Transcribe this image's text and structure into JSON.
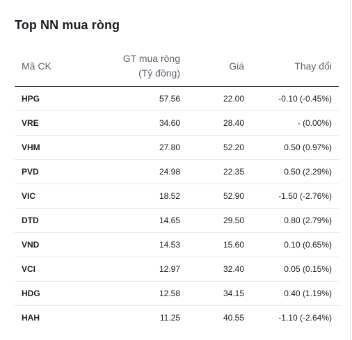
{
  "card": {
    "title": "Top NN mua ròng"
  },
  "table": {
    "headers": {
      "symbol": "Mã CK",
      "value_line1": "GT mua ròng",
      "value_line2": "(Tỷ đồng)",
      "price": "Giá",
      "change": "Thay đổi"
    },
    "rows": [
      {
        "symbol": "HPG",
        "value": "57.56",
        "price": "22.00",
        "change": "-0.10 (-0.45%)",
        "trend": "down"
      },
      {
        "symbol": "VRE",
        "value": "34.60",
        "price": "28.40",
        "change": "- (0.00%)",
        "trend": "ref"
      },
      {
        "symbol": "VHM",
        "value": "27.80",
        "price": "52.20",
        "change": "0.50 (0.97%)",
        "trend": "up"
      },
      {
        "symbol": "PVD",
        "value": "24.98",
        "price": "22.35",
        "change": "0.50 (2.29%)",
        "trend": "up"
      },
      {
        "symbol": "VIC",
        "value": "18.52",
        "price": "52.90",
        "change": "-1.50 (-2.76%)",
        "trend": "down"
      },
      {
        "symbol": "DTD",
        "value": "14.65",
        "price": "29.50",
        "change": "0.80 (2.79%)",
        "trend": "up"
      },
      {
        "symbol": "VND",
        "value": "14.53",
        "price": "15.60",
        "change": "0.10 (0.65%)",
        "trend": "up"
      },
      {
        "symbol": "VCI",
        "value": "12.97",
        "price": "32.40",
        "change": "0.05 (0.15%)",
        "trend": "up"
      },
      {
        "symbol": "HDG",
        "value": "12.58",
        "price": "34.15",
        "change": "0.40 (1.19%)",
        "trend": "up"
      },
      {
        "symbol": "HAH",
        "value": "11.25",
        "price": "40.55",
        "change": "-1.10 (-2.64%)",
        "trend": "down"
      }
    ]
  },
  "colors": {
    "down": "#e0303a",
    "ref": "#d4a219",
    "up": "#3fae3f"
  }
}
